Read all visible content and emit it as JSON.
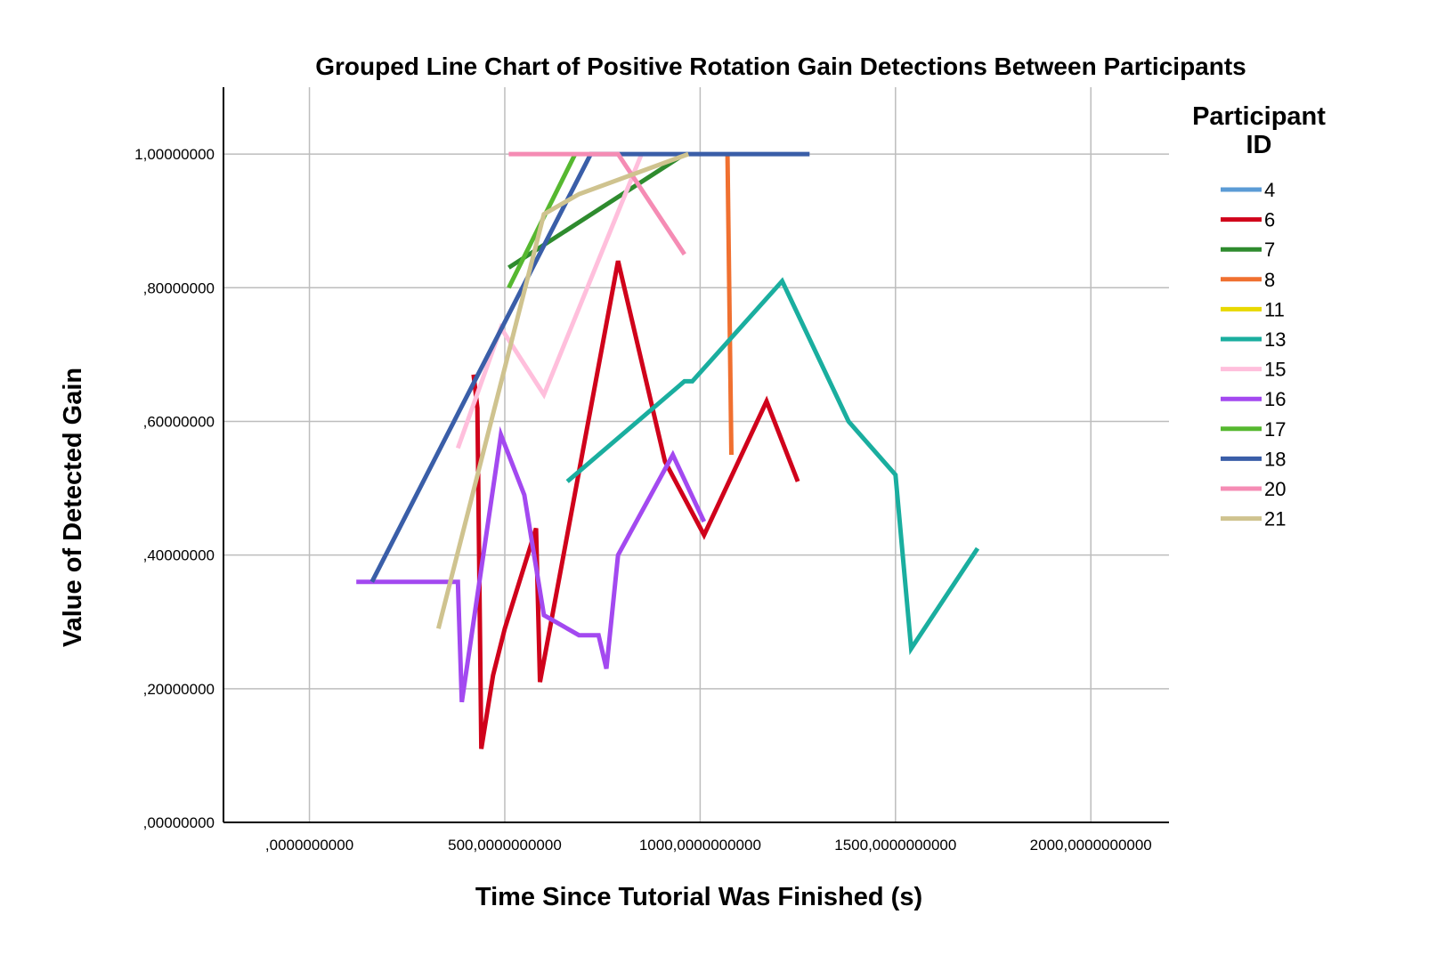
{
  "chart_data": {
    "type": "line",
    "title": "Grouped Line Chart of Positive Rotation Gain Detections Between Participants",
    "xlabel": "Time Since Tutorial Was Finished (s)",
    "ylabel": "Value of Detected Gain",
    "xlim": [
      -220,
      2200
    ],
    "ylim": [
      0,
      1.1
    ],
    "x_ticks": [
      0,
      500,
      1000,
      1500,
      2000
    ],
    "x_tick_labels": [
      ",0000000000",
      "500,0000000000",
      "1000,0000000000",
      "1500,0000000000",
      "2000,0000000000"
    ],
    "y_ticks": [
      0,
      0.2,
      0.4,
      0.6,
      0.8,
      1.0
    ],
    "y_tick_labels": [
      ",00000000",
      ",20000000",
      ",40000000",
      ",60000000",
      ",80000000",
      "1,00000000"
    ],
    "grid": true,
    "legend_title": "Participant ID",
    "legend_position": "right",
    "series": [
      {
        "name": "4",
        "color": "#5b9bd5",
        "points": []
      },
      {
        "name": "6",
        "color": "#d0021b",
        "points": [
          [
            420,
            0.67
          ],
          [
            430,
            0.62
          ],
          [
            440,
            0.11
          ],
          [
            470,
            0.22
          ],
          [
            500,
            0.29
          ],
          [
            580,
            0.44
          ],
          [
            590,
            0.21
          ],
          [
            790,
            0.84
          ],
          [
            910,
            0.54
          ],
          [
            1010,
            0.43
          ],
          [
            1170,
            0.63
          ],
          [
            1250,
            0.51
          ]
        ]
      },
      {
        "name": "7",
        "color": "#2e8b2e",
        "points": [
          [
            510,
            0.83
          ],
          [
            960,
            1.0
          ]
        ]
      },
      {
        "name": "8",
        "color": "#f07030",
        "points": [
          [
            1070,
            1.0
          ],
          [
            1080,
            0.55
          ]
        ]
      },
      {
        "name": "11",
        "color": "#e8d800",
        "points": []
      },
      {
        "name": "13",
        "color": "#1aae9f",
        "points": [
          [
            660,
            0.51
          ],
          [
            960,
            0.66
          ],
          [
            980,
            0.66
          ],
          [
            1210,
            0.81
          ],
          [
            1380,
            0.6
          ],
          [
            1500,
            0.52
          ],
          [
            1540,
            0.26
          ],
          [
            1710,
            0.41
          ]
        ]
      },
      {
        "name": "15",
        "color": "#ffbfdc",
        "points": [
          [
            380,
            0.56
          ],
          [
            490,
            0.74
          ],
          [
            600,
            0.64
          ],
          [
            850,
            1.0
          ]
        ]
      },
      {
        "name": "16",
        "color": "#a349f0",
        "points": [
          [
            120,
            0.36
          ],
          [
            380,
            0.36
          ],
          [
            390,
            0.18
          ],
          [
            490,
            0.58
          ],
          [
            550,
            0.49
          ],
          [
            600,
            0.31
          ],
          [
            690,
            0.28
          ],
          [
            740,
            0.28
          ],
          [
            760,
            0.23
          ],
          [
            790,
            0.4
          ],
          [
            930,
            0.55
          ],
          [
            1010,
            0.45
          ]
        ]
      },
      {
        "name": "17",
        "color": "#56b830",
        "points": [
          [
            510,
            0.8
          ],
          [
            680,
            1.0
          ]
        ]
      },
      {
        "name": "18",
        "color": "#3a5ea8",
        "points": [
          [
            160,
            0.36
          ],
          [
            720,
            1.0
          ],
          [
            1280,
            1.0
          ]
        ]
      },
      {
        "name": "20",
        "color": "#f58cb4",
        "points": [
          [
            510,
            1.0
          ],
          [
            790,
            1.0
          ],
          [
            960,
            0.85
          ]
        ]
      },
      {
        "name": "21",
        "color": "#cfc38f",
        "points": [
          [
            330,
            0.29
          ],
          [
            600,
            0.91
          ],
          [
            690,
            0.94
          ],
          [
            970,
            1.0
          ]
        ]
      }
    ]
  }
}
